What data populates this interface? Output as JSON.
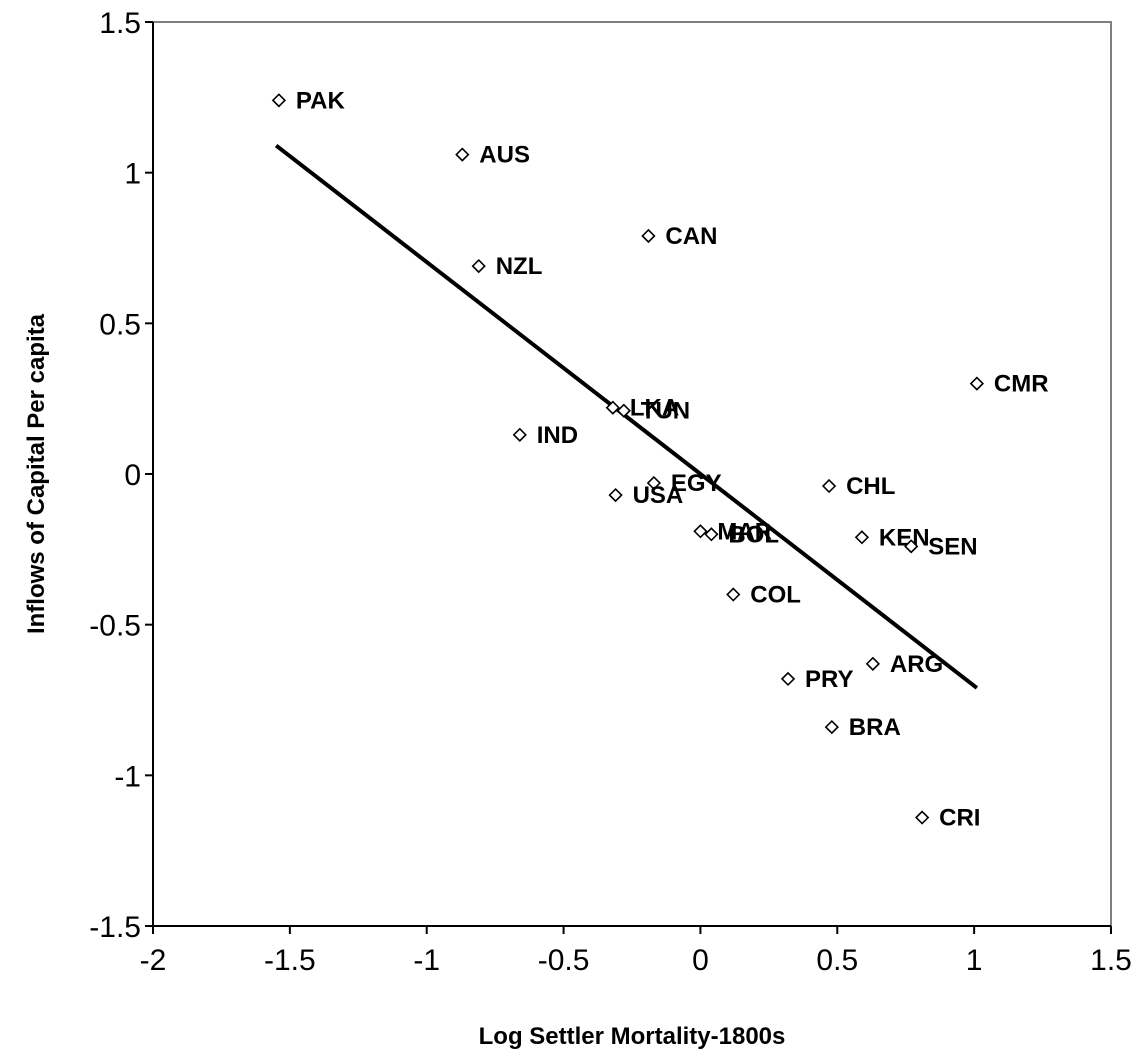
{
  "chart_data": {
    "type": "scatter",
    "title": "",
    "xlabel": "Log Settler Mortality-1800s",
    "ylabel": "Inflows of Capital Per capita",
    "xlim": [
      -2,
      1.5
    ],
    "ylim": [
      -1.5,
      1.5
    ],
    "xticks": [
      -2,
      -1.5,
      -1,
      -0.5,
      0,
      0.5,
      1,
      1.5
    ],
    "yticks": [
      -1.5,
      -1,
      -0.5,
      0,
      0.5,
      1,
      1.5
    ],
    "grid": false,
    "legend": "none",
    "marker": "hollow-diamond",
    "points": [
      {
        "label": "PAK",
        "x": -1.54,
        "y": 1.24
      },
      {
        "label": "AUS",
        "x": -0.87,
        "y": 1.06
      },
      {
        "label": "NZL",
        "x": -0.81,
        "y": 0.69
      },
      {
        "label": "CAN",
        "x": -0.19,
        "y": 0.79
      },
      {
        "label": "LKA",
        "x": -0.32,
        "y": 0.22
      },
      {
        "label": "TUN",
        "x": -0.28,
        "y": 0.21
      },
      {
        "label": "IND",
        "x": -0.66,
        "y": 0.13
      },
      {
        "label": "EGY",
        "x": -0.17,
        "y": -0.03
      },
      {
        "label": "USA",
        "x": -0.31,
        "y": -0.07
      },
      {
        "label": "MAR",
        "x": 0.0,
        "y": -0.19
      },
      {
        "label": "BOL",
        "x": 0.04,
        "y": -0.2
      },
      {
        "label": "CHL",
        "x": 0.47,
        "y": -0.04
      },
      {
        "label": "KEN",
        "x": 0.59,
        "y": -0.21
      },
      {
        "label": "SEN",
        "x": 0.77,
        "y": -0.24
      },
      {
        "label": "CMR",
        "x": 1.01,
        "y": 0.3
      },
      {
        "label": "COL",
        "x": 0.12,
        "y": -0.4
      },
      {
        "label": "ARG",
        "x": 0.63,
        "y": -0.63
      },
      {
        "label": "PRY",
        "x": 0.32,
        "y": -0.68
      },
      {
        "label": "BRA",
        "x": 0.48,
        "y": -0.84
      },
      {
        "label": "CRI",
        "x": 0.81,
        "y": -1.14
      }
    ],
    "trendline": {
      "x1": -1.55,
      "y1": 1.09,
      "x2": 1.01,
      "y2": -0.71
    }
  },
  "colors": {
    "plot_border": "#808080",
    "axis": "#000000",
    "marker": "#000000",
    "trendline": "#000000"
  }
}
